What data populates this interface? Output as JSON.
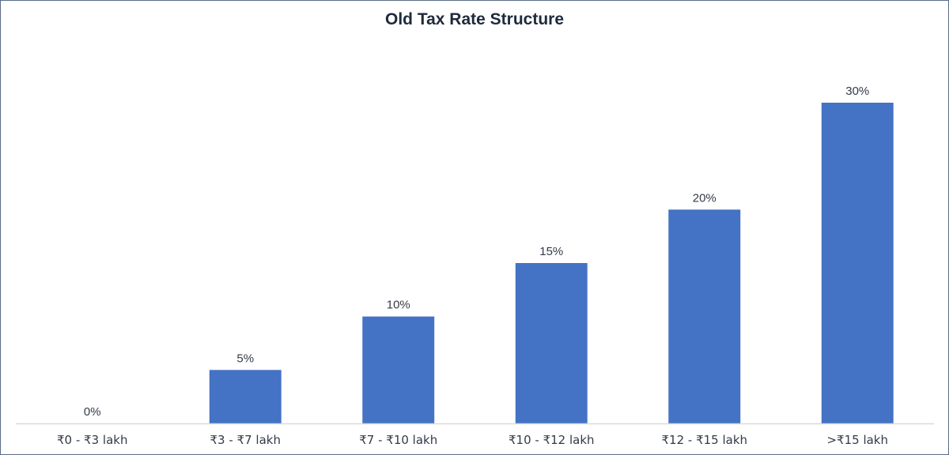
{
  "chart_data": {
    "type": "bar",
    "title": "Old Tax Rate Structure",
    "xlabel": "",
    "ylabel": "",
    "categories": [
      "₹0 - ₹3 lakh",
      "₹3 - ₹7 lakh",
      "₹7 - ₹10 lakh",
      "₹10 - ₹12 lakh",
      "₹12 - ₹15 lakh",
      ">₹15 lakh"
    ],
    "values": [
      0,
      5,
      10,
      15,
      20,
      30
    ],
    "data_labels": [
      "0%",
      "5%",
      "10%",
      "15%",
      "20%",
      "30%"
    ],
    "ylim": [
      0,
      30
    ],
    "grid": false,
    "legend": "none",
    "colors": {
      "bar": "#4472c4",
      "axis": "#d9d9d9",
      "text": "#333b48",
      "title": "#1f2a3c",
      "border": "#5a6b86"
    }
  }
}
